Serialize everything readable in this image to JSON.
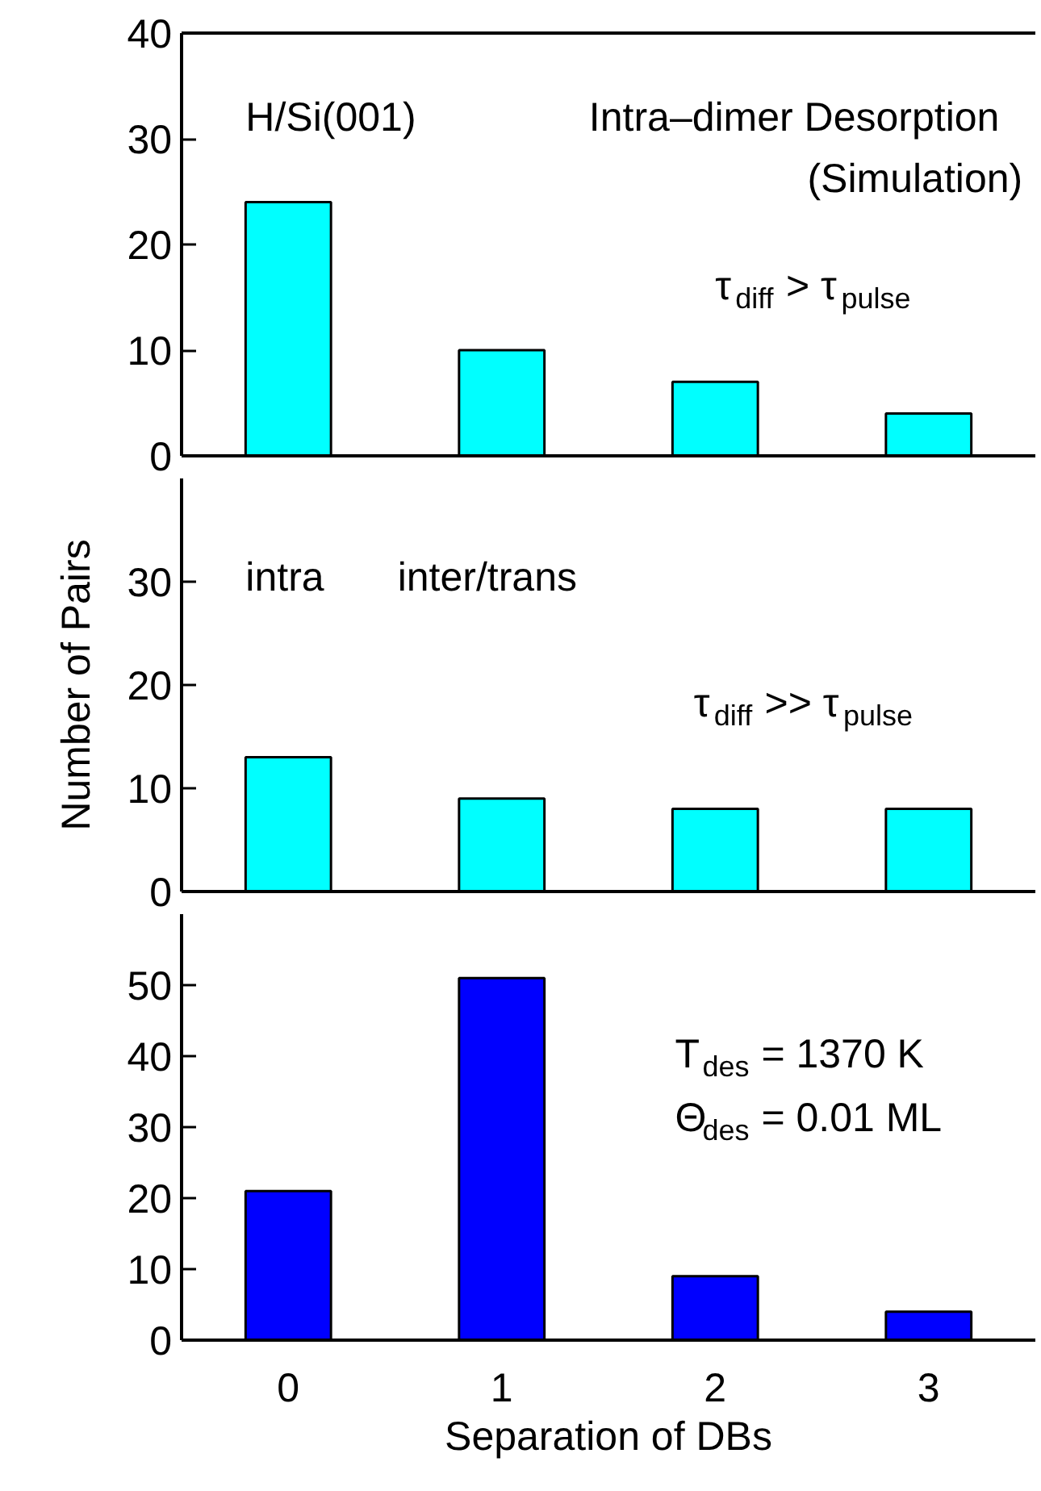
{
  "chart_data": [
    {
      "type": "bar",
      "categories": [
        "0",
        "1",
        "2",
        "3"
      ],
      "values": [
        24,
        10,
        7,
        4
      ],
      "color": "#00ffff",
      "ylim": [
        0,
        40
      ],
      "yticks": [
        0,
        10,
        20,
        30,
        40
      ],
      "tick_labels": "y",
      "grid": false,
      "annotations": [
        "H/Si(001)",
        "Intra–dimer Desorption",
        "(Simulation)",
        "τ$_{diff}$ > τ$_{pulse}$"
      ]
    },
    {
      "type": "bar",
      "categories": [
        "0",
        "1",
        "2",
        "3"
      ],
      "values": [
        13,
        9,
        8,
        8
      ],
      "color": "#00ffff",
      "ylim": [
        0,
        40
      ],
      "yticks": [
        0,
        10,
        20,
        30
      ],
      "tick_labels": "y",
      "grid": false,
      "ylabel": "Number of Pairs",
      "annotations": [
        "intra",
        "inter/trans",
        "τ$_{diff}$ >> τ$_{pulse}$"
      ]
    },
    {
      "type": "bar",
      "categories": [
        "0",
        "1",
        "2",
        "3"
      ],
      "values": [
        21,
        51,
        9,
        4
      ],
      "color": "#0000ff",
      "ylim": [
        0,
        60
      ],
      "yticks": [
        0,
        10,
        20,
        30,
        40,
        50
      ],
      "grid": false,
      "xlabel": "Separation of DBs",
      "annotations": [
        "T$_{des}$ = 1370 K",
        "Θ$_{des}$ = 0.01 ML"
      ]
    }
  ]
}
